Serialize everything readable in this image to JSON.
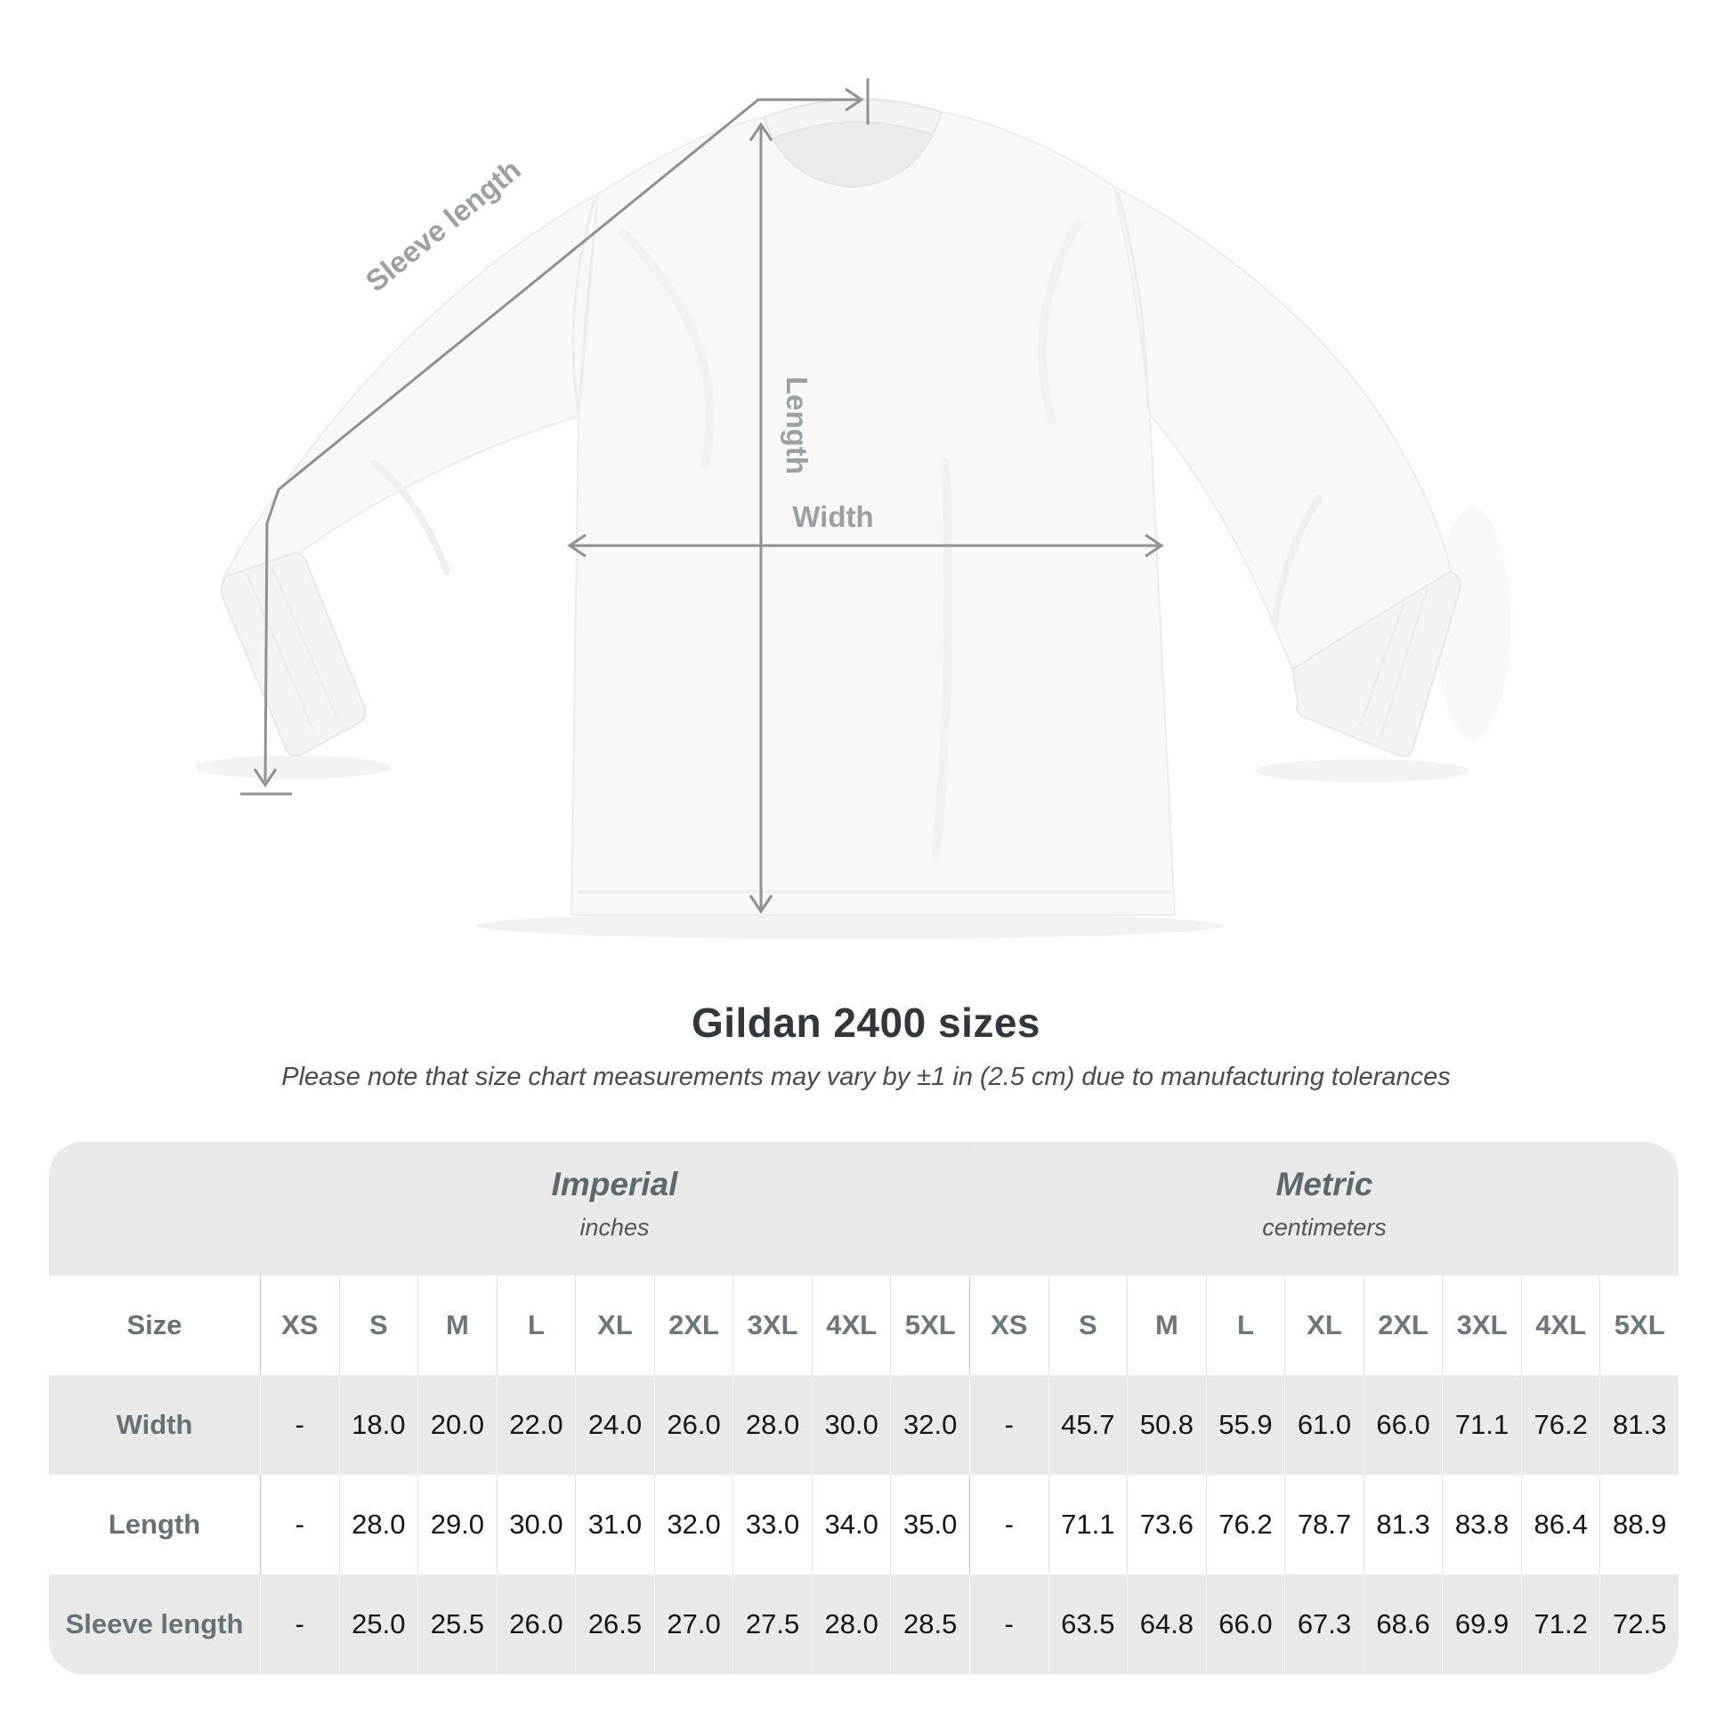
{
  "heading": {
    "title": "Gildan 2400 sizes",
    "subtitle": "Please note that size chart measurements may vary by ±1 in (2.5 cm) due to manufacturing tolerances"
  },
  "diagram": {
    "labels": {
      "sleeve_length": "Sleeve length",
      "length": "Length",
      "width": "Width"
    },
    "line_color": "#8f9193",
    "label_color": "#9aa0a3"
  },
  "table": {
    "corner_label": "Size",
    "unit_groups": [
      {
        "name": "Imperial",
        "unit": "inches"
      },
      {
        "name": "Metric",
        "unit": "centimeters"
      }
    ],
    "size_columns": [
      "XS",
      "S",
      "M",
      "L",
      "XL",
      "2XL",
      "3XL",
      "4XL",
      "5XL"
    ],
    "rows": [
      {
        "label": "Width",
        "imperial": [
          "-",
          "18.0",
          "20.0",
          "22.0",
          "24.0",
          "26.0",
          "28.0",
          "30.0",
          "32.0"
        ],
        "metric": [
          "-",
          "45.7",
          "50.8",
          "55.9",
          "61.0",
          "66.0",
          "71.1",
          "76.2",
          "81.3"
        ]
      },
      {
        "label": "Length",
        "imperial": [
          "-",
          "28.0",
          "29.0",
          "30.0",
          "31.0",
          "32.0",
          "33.0",
          "34.0",
          "35.0"
        ],
        "metric": [
          "-",
          "71.1",
          "73.6",
          "76.2",
          "78.7",
          "81.3",
          "83.8",
          "86.4",
          "88.9"
        ]
      },
      {
        "label": "Sleeve length",
        "imperial": [
          "-",
          "25.0",
          "25.5",
          "26.0",
          "26.5",
          "27.0",
          "27.5",
          "28.0",
          "28.5"
        ],
        "metric": [
          "-",
          "63.5",
          "64.8",
          "66.0",
          "67.3",
          "68.6",
          "69.9",
          "71.2",
          "72.5"
        ]
      }
    ],
    "colors": {
      "band_bg": "#e9e9e9",
      "row_bg": "#ffffff",
      "header_text": "#6d767a",
      "value_text": "#161616"
    }
  }
}
